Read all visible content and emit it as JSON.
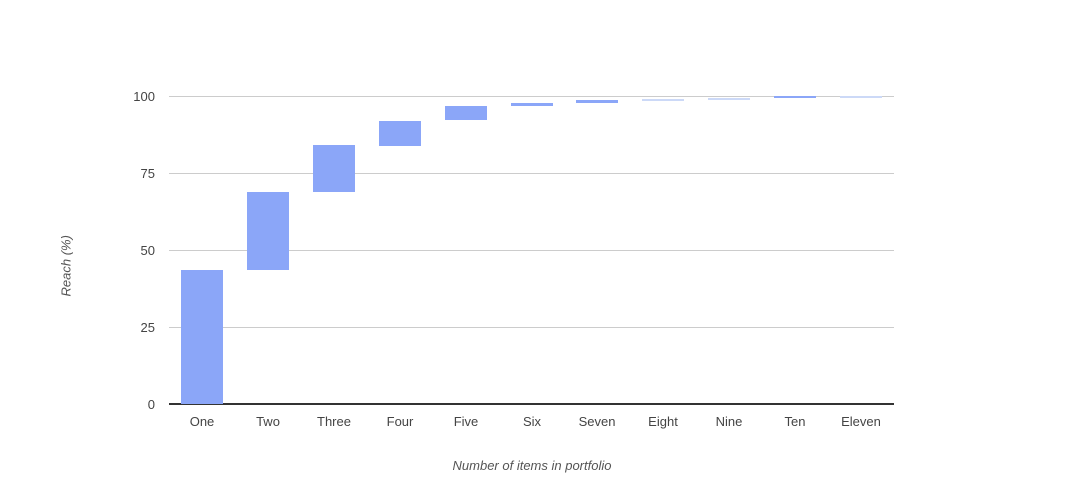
{
  "chart_data": {
    "type": "bar",
    "subtype": "waterfall",
    "title": "",
    "xlabel": "Number of items in portfolio",
    "ylabel": "Reach (%)",
    "categories": [
      "One",
      "Two",
      "Three",
      "Four",
      "Five",
      "Six",
      "Seven",
      "Eight",
      "Nine",
      "Ten",
      "Eleven"
    ],
    "cumulative_values": [
      43.4,
      68.8,
      84.0,
      92.0,
      96.7,
      97.8,
      98.7,
      99.1,
      99.4,
      100.0,
      100.0
    ],
    "segments": [
      {
        "label": "One",
        "from": 0,
        "to": 43.4,
        "faint": false
      },
      {
        "label": "Two",
        "from": 43.4,
        "to": 68.8,
        "faint": false
      },
      {
        "label": "Three",
        "from": 68.8,
        "to": 84.0,
        "faint": false
      },
      {
        "label": "Four",
        "from": 84.0,
        "to": 92.0,
        "faint": false
      },
      {
        "label": "Five",
        "from": 92.0,
        "to": 96.7,
        "faint": false
      },
      {
        "label": "Six",
        "from": 96.7,
        "to": 97.8,
        "faint": false
      },
      {
        "label": "Seven",
        "from": 97.8,
        "to": 98.7,
        "faint": false
      },
      {
        "label": "Eight",
        "from": 98.7,
        "to": 99.1,
        "faint": true
      },
      {
        "label": "Nine",
        "from": 99.1,
        "to": 99.4,
        "faint": true
      },
      {
        "label": "Ten",
        "from": 99.4,
        "to": 100.0,
        "faint": false
      },
      {
        "label": "Eleven",
        "from": 100.0,
        "to": 100.0,
        "faint": true
      }
    ],
    "yticks": [
      0,
      25,
      50,
      75,
      100
    ],
    "ylim": [
      0,
      100
    ],
    "grid": true,
    "legend_position": "none",
    "colors": {
      "bar": "#8ba6f8",
      "bar_faint": "#ccd9f7",
      "gridline": "#cccccc",
      "axis_line": "#333333",
      "tick_text": "#444444",
      "axis_title_text": "#555555",
      "background": "#ffffff"
    }
  }
}
